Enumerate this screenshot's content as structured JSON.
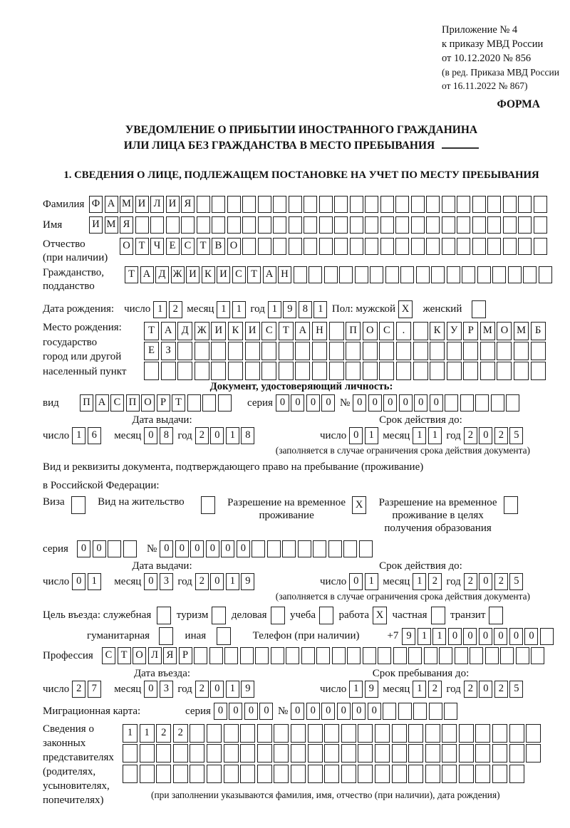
{
  "page": {
    "header": {
      "line1": "Приложение № 4",
      "line2": "к приказу МВД России",
      "line3": "от 10.12.2020 № 856",
      "line4": "(в ред. Приказа МВД России",
      "line5": "от 16.11.2022 № 867)",
      "forma": "ФОРМА"
    },
    "title": {
      "line1": "УВЕДОМЛЕНИЕ О ПРИБЫТИИ ИНОСТРАННОГО ГРАЖДАНИНА",
      "line2": "ИЛИ ЛИЦА БЕЗ ГРАЖДАНСТВА В МЕСТО ПРЕБЫВАНИЯ"
    },
    "section1_heading": "1. СВЕДЕНИЯ О ЛИЦЕ, ПОДЛЕЖАЩЕМ ПОСТАНОВКЕ НА УЧЕТ ПО МЕСТУ ПРЕБЫВАНИЯ"
  },
  "labels": {
    "day": "число",
    "month": "месяц",
    "year": "год"
  },
  "surname": {
    "label": "Фамилия",
    "boxes": {
      "value": "ФАМИЛИЯ",
      "count": 30
    }
  },
  "firstname": {
    "label": "Имя",
    "boxes": {
      "value": "ИМЯ",
      "count": 30
    }
  },
  "patronymic": {
    "label1": "Отчество",
    "label2": "(при наличии)",
    "boxes": {
      "value": "ОТЧЕСТВО",
      "count": 28
    }
  },
  "citizenship": {
    "label1": "Гражданство,",
    "label2": "подданство",
    "boxes": {
      "value": "ТАДЖИКИСТАН",
      "count": 28
    }
  },
  "birth": {
    "label": "Дата рождения:",
    "day": {
      "value": "12",
      "count": 2
    },
    "month": {
      "value": "11",
      "count": 2
    },
    "year": {
      "value": "1981",
      "count": 4
    },
    "sex_label": "Пол: мужской",
    "male_box": {
      "value": "X",
      "count": 1
    },
    "female_label": "женский",
    "female_box": {
      "value": "",
      "count": 1
    }
  },
  "birthplace": {
    "label1": "Место рождения:",
    "label2": "государство",
    "label3": "город или другой",
    "label4": "населенный пункт",
    "row1": {
      "value": "ТАДЖИКИСТАН ПОС. КУРМОМБ",
      "count": 24
    },
    "row2": {
      "value": "ЕЗ",
      "count": 24
    },
    "row3": {
      "value": "",
      "count": 24
    }
  },
  "iddoc": {
    "heading": "Документ, удостоверяющий личность:",
    "kind_label": "вид",
    "kind": {
      "value": "ПАСПОРТ",
      "count": 10
    },
    "series_label": "серия",
    "series": {
      "value": "0000",
      "count": 4
    },
    "number_label": "№",
    "number": {
      "value": "000000",
      "count": 11
    },
    "issue_title": "Дата выдачи:",
    "issue_day": {
      "value": "16",
      "count": 2
    },
    "issue_month": {
      "value": "08",
      "count": 2
    },
    "issue_year": {
      "value": "2018",
      "count": 4
    },
    "valid_title": "Срок действия до:",
    "valid_day": {
      "value": "01",
      "count": 2
    },
    "valid_month": {
      "value": "11",
      "count": 2
    },
    "valid_year": {
      "value": "2025",
      "count": 4
    },
    "note": "(заполняется в случае ограничения срока действия документа)"
  },
  "permit": {
    "intro1": "Вид и реквизиты документа, подтверждающего право на пребывание (проживание)",
    "intro2": "в Российской Федерации:",
    "visa_label": "Виза",
    "visa_box": {
      "value": "",
      "count": 1
    },
    "residence_label": "Вид на жительство",
    "residence_box": {
      "value": "",
      "count": 1
    },
    "temp_line1": "Разрешение на временное",
    "temp_line2": "проживание",
    "temp_box": {
      "value": "X",
      "count": 1
    },
    "edu_line1": "Разрешение на временное",
    "edu_line2": "проживание в целях",
    "edu_line3": "получения образования",
    "edu_box": {
      "value": "",
      "count": 1
    },
    "series_label": "серия",
    "series": {
      "value": "00",
      "count": 4
    },
    "number_label": "№",
    "number": {
      "value": "000000",
      "count": 14
    },
    "issue_title": "Дата выдачи:",
    "issue_day": {
      "value": "01",
      "count": 2
    },
    "issue_month": {
      "value": "03",
      "count": 2
    },
    "issue_year": {
      "value": "2019",
      "count": 4
    },
    "valid_title": "Срок действия до:",
    "valid_day": {
      "value": "01",
      "count": 2
    },
    "valid_month": {
      "value": "12",
      "count": 2
    },
    "valid_year": {
      "value": "2025",
      "count": 4
    },
    "note": "(заполняется в случае ограничения срока действия документа)"
  },
  "purpose": {
    "label": "Цель въезда: служебная",
    "opt1_box": {
      "value": "",
      "count": 1
    },
    "opt2_label": "туризм",
    "opt2_box": {
      "value": "",
      "count": 1
    },
    "opt3_label": "деловая",
    "opt3_box": {
      "value": "",
      "count": 1
    },
    "opt4_label": "учеба",
    "opt4_box": {
      "value": "",
      "count": 1
    },
    "opt5_label": "работа",
    "opt5_box": {
      "value": "X",
      "count": 1
    },
    "opt6_label": "частная",
    "opt6_box": {
      "value": "",
      "count": 1
    },
    "opt7_label": "транзит",
    "opt7_box": {
      "value": "",
      "count": 1
    },
    "opt8_label": "гуманитарная",
    "opt8_box": {
      "value": "",
      "count": 1
    },
    "opt9_label": "иная",
    "opt9_box": {
      "value": "",
      "count": 1
    },
    "phone_label": "Телефон (при наличии)",
    "phone_prefix": "+7",
    "phone": {
      "value": "911000000",
      "count": 10
    }
  },
  "profession": {
    "label": "Профессия",
    "boxes": {
      "value": "СТОЛЯР",
      "count": 29
    }
  },
  "entry": {
    "arrival_title": "Дата въезда:",
    "arrival_day": {
      "value": "27",
      "count": 2
    },
    "arrival_month": {
      "value": "03",
      "count": 2
    },
    "arrival_year": {
      "value": "2019",
      "count": 4
    },
    "stay_title": "Срок пребывания до:",
    "stay_day": {
      "value": "19",
      "count": 2
    },
    "stay_month": {
      "value": "12",
      "count": 2
    },
    "stay_year": {
      "value": "2025",
      "count": 4
    }
  },
  "migration": {
    "label": "Миграционная карта:",
    "series_label": "серия",
    "series": {
      "value": "0000",
      "count": 4
    },
    "number_label": "№",
    "number": {
      "value": "000000",
      "count": 11
    }
  },
  "representatives": {
    "label1": "Сведения о",
    "label2": "законных",
    "label3": "представителях",
    "label4": "(родителях,",
    "label5": "усыновителях,",
    "label6": "попечителях)",
    "row1": {
      "value": "1122",
      "count": 25
    },
    "row2": {
      "value": "",
      "count": 25
    },
    "row3": {
      "value": "",
      "count": 24
    },
    "note": "(при заполнении указываются фамилия, имя, отчество (при наличии), дата рождения)"
  }
}
